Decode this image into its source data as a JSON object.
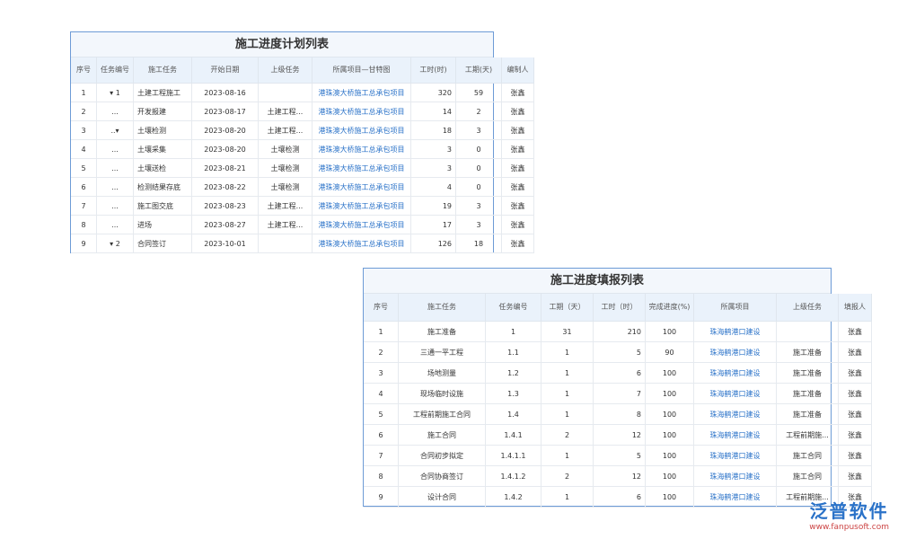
{
  "plan_table": {
    "title": "施工进度计划列表",
    "headers": [
      "序号",
      "任务编号",
      "施工任务",
      "开始日期",
      "上级任务",
      "所属项目—甘特图",
      "工时(时)",
      "工期(天)",
      "编制人"
    ],
    "rows": [
      [
        "1",
        "▾ 1",
        "土建工程施工",
        "2023-08-16",
        "",
        "港珠澳大桥施工总承包项目",
        320,
        59,
        "张鑫"
      ],
      [
        "2",
        "...",
        "开发报建",
        "2023-08-17",
        "土建工程...",
        "港珠澳大桥施工总承包项目",
        14,
        2,
        "张鑫"
      ],
      [
        "3",
        "..▾",
        "土壤检测",
        "2023-08-20",
        "土建工程...",
        "港珠澳大桥施工总承包项目",
        18,
        3,
        "张鑫"
      ],
      [
        "4",
        "...",
        "土壤采集",
        "2023-08-20",
        "土壤检测",
        "港珠澳大桥施工总承包项目",
        3,
        0,
        "张鑫"
      ],
      [
        "5",
        "...",
        "土壤送检",
        "2023-08-21",
        "土壤检测",
        "港珠澳大桥施工总承包项目",
        3,
        0,
        "张鑫"
      ],
      [
        "6",
        "...",
        "检测结果存底",
        "2023-08-22",
        "土壤检测",
        "港珠澳大桥施工总承包项目",
        4,
        0,
        "张鑫"
      ],
      [
        "7",
        "...",
        "施工图交底",
        "2023-08-23",
        "土建工程...",
        "港珠澳大桥施工总承包项目",
        19,
        3,
        "张鑫"
      ],
      [
        "8",
        "...",
        "进场",
        "2023-08-27",
        "土建工程...",
        "港珠澳大桥施工总承包项目",
        17,
        3,
        "张鑫"
      ],
      [
        "9",
        "▾ 2",
        "合同签订",
        "2023-10-01",
        "",
        "港珠澳大桥施工总承包项目",
        126,
        18,
        "张鑫"
      ]
    ]
  },
  "report_table": {
    "title": "施工进度填报列表",
    "headers": [
      "序号",
      "施工任务",
      "任务编号",
      "工期（天）",
      "工时（时）",
      "完成进度(%)",
      "所属项目",
      "上级任务",
      "填报人"
    ],
    "rows": [
      [
        "1",
        "施工准备",
        "1",
        31,
        210,
        100,
        "珠海鹤港口建设",
        "",
        "张鑫"
      ],
      [
        "2",
        "三通一平工程",
        "1.1",
        1,
        5,
        90,
        "珠海鹤港口建设",
        "施工准备",
        "张鑫"
      ],
      [
        "3",
        "场地测量",
        "1.2",
        1,
        6,
        100,
        "珠海鹤港口建设",
        "施工准备",
        "张鑫"
      ],
      [
        "4",
        "现场临时设施",
        "1.3",
        1,
        7,
        100,
        "珠海鹤港口建设",
        "施工准备",
        "张鑫"
      ],
      [
        "5",
        "工程前期施工合同",
        "1.4",
        1,
        8,
        100,
        "珠海鹤港口建设",
        "施工准备",
        "张鑫"
      ],
      [
        "6",
        "施工合同",
        "1.4.1",
        2,
        12,
        100,
        "珠海鹤港口建设",
        "工程前期施...",
        "张鑫"
      ],
      [
        "7",
        "合同初步拟定",
        "1.4.1.1",
        1,
        5,
        100,
        "珠海鹤港口建设",
        "施工合同",
        "张鑫"
      ],
      [
        "8",
        "合同协商签订",
        "1.4.1.2",
        2,
        12,
        100,
        "珠海鹤港口建设",
        "施工合同",
        "张鑫"
      ],
      [
        "9",
        "设计合同",
        "1.4.2",
        1,
        6,
        100,
        "珠海鹤港口建设",
        "工程前期施...",
        "张鑫"
      ]
    ]
  },
  "watermark": {
    "brand": "泛普软件",
    "url": "www.fanpusoft.com"
  }
}
